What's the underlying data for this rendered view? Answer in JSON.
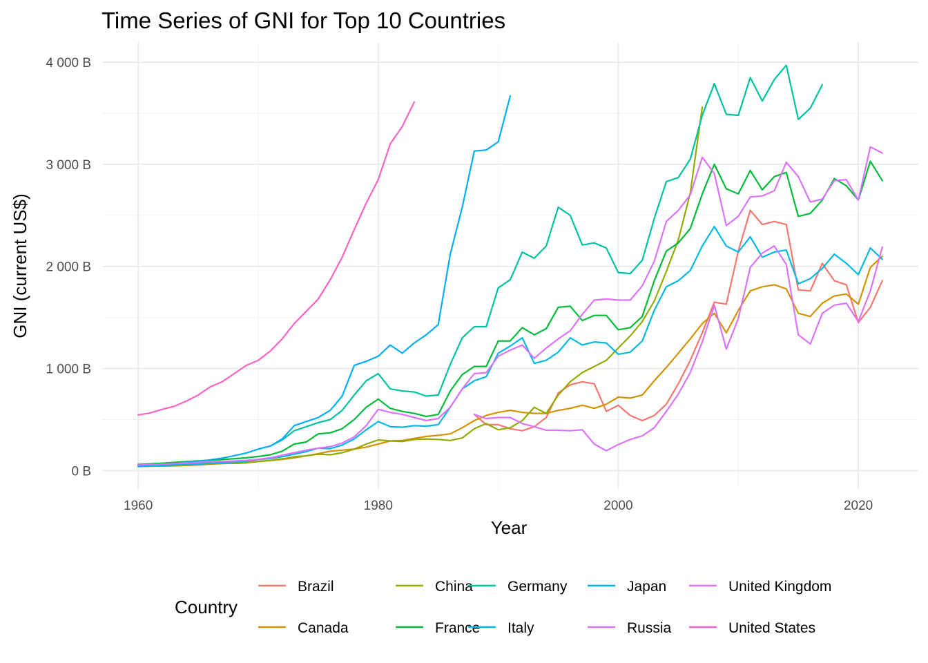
{
  "chart_data": {
    "type": "line",
    "title": "Time Series of GNI for Top 10 Countries",
    "xlabel": "Year",
    "ylabel": "GNI (current US$)",
    "xlim": [
      1957,
      2025
    ],
    "ylim": [
      -180,
      4190
    ],
    "x_ticks": [
      1960,
      1980,
      2000,
      2020
    ],
    "x_tick_labels": [
      "1960",
      "1980",
      "2000",
      "2020"
    ],
    "x_minor_ticks": [
      1970,
      1990,
      2010
    ],
    "y_ticks": [
      0,
      1000,
      2000,
      3000,
      4000
    ],
    "y_tick_labels": [
      "0 B",
      "1 000 B",
      "2 000 B",
      "3 000 B",
      "4 000 B"
    ],
    "y_minor_ticks": [
      500,
      1500,
      2500,
      3500
    ],
    "y_unit": "billions of current US$",
    "grid": true,
    "legend_title": "Country",
    "legend_position": "bottom",
    "series": [
      {
        "name": "Brazil",
        "color": "#F8766D",
        "start": 1988,
        "values": [
          550,
          450,
          450,
          410,
          390,
          430,
          520,
          760,
          840,
          870,
          850,
          580,
          640,
          540,
          490,
          540,
          650,
          850,
          1080,
          1350,
          1650,
          1630,
          2150,
          2550,
          2410,
          2440,
          2410,
          1770,
          1760,
          2030,
          1860,
          1820,
          1450,
          1600,
          1860
        ]
      },
      {
        "name": "Canada",
        "color": "#D39200",
        "start": 1960,
        "values": [
          40,
          42,
          44,
          46,
          50,
          55,
          62,
          68,
          73,
          80,
          88,
          98,
          110,
          125,
          145,
          165,
          190,
          200,
          210,
          230,
          260,
          290,
          295,
          315,
          335,
          345,
          360,
          420,
          490,
          540,
          570,
          590,
          570,
          560,
          560,
          590,
          610,
          640,
          610,
          650,
          720,
          710,
          740,
          880,
          1010,
          1150,
          1290,
          1440,
          1540,
          1350,
          1570,
          1760,
          1800,
          1820,
          1780,
          1540,
          1510,
          1640,
          1710,
          1730,
          1630,
          1990,
          2100
        ]
      },
      {
        "name": "China",
        "color": "#93AA00",
        "start": 1960,
        "values": [
          60,
          55,
          50,
          50,
          55,
          65,
          75,
          75,
          70,
          75,
          90,
          100,
          115,
          135,
          145,
          160,
          155,
          175,
          210,
          260,
          300,
          290,
          285,
          305,
          310,
          305,
          295,
          320,
          410,
          460,
          400,
          420,
          490,
          620,
          560,
          740,
          870,
          960,
          1020,
          1080,
          1200,
          1320,
          1460,
          1660,
          1950,
          2260,
          2720,
          3560
        ]
      },
      {
        "name": "France",
        "color": "#00BA38",
        "start": 1960,
        "values": [
          60,
          66,
          72,
          80,
          88,
          95,
          102,
          108,
          116,
          125,
          138,
          155,
          190,
          260,
          280,
          360,
          370,
          410,
          500,
          620,
          700,
          610,
          580,
          560,
          530,
          550,
          780,
          940,
          1020,
          1020,
          1270,
          1270,
          1400,
          1330,
          1390,
          1600,
          1610,
          1470,
          1520,
          1520,
          1380,
          1400,
          1510,
          1860,
          2150,
          2230,
          2370,
          2710,
          3000,
          2760,
          2710,
          2940,
          2750,
          2880,
          2920,
          2490,
          2520,
          2650,
          2860,
          2790,
          2650,
          3030,
          2840
        ]
      },
      {
        "name": "Germany",
        "color": "#00C19F",
        "start": 1970,
        "values": [
          210,
          240,
          300,
          390,
          430,
          470,
          500,
          590,
          740,
          880,
          950,
          800,
          780,
          770,
          730,
          740,
          1040,
          1300,
          1410,
          1410,
          1790,
          1870,
          2140,
          2080,
          2200,
          2580,
          2500,
          2210,
          2230,
          2180,
          1940,
          1930,
          2060,
          2470,
          2830,
          2870,
          3050,
          3480,
          3790,
          3490,
          3480,
          3850,
          3620,
          3830,
          3970,
          3440,
          3550,
          3780
        ]
      },
      {
        "name": "Italy",
        "color": "#00B9E3",
        "start": 1960,
        "values": [
          40,
          45,
          50,
          55,
          60,
          64,
          69,
          76,
          82,
          92,
          108,
          118,
          135,
          160,
          185,
          220,
          215,
          250,
          310,
          400,
          480,
          430,
          425,
          440,
          435,
          450,
          620,
          800,
          880,
          920,
          1150,
          1220,
          1300,
          1050,
          1080,
          1160,
          1300,
          1230,
          1260,
          1250,
          1140,
          1160,
          1270,
          1570,
          1800,
          1860,
          1960,
          2200,
          2390,
          2200,
          2140,
          2290,
          2090,
          2140,
          2160,
          1830,
          1880,
          1980,
          2120,
          2030,
          1920,
          2180,
          2070
        ]
      },
      {
        "name": "Japan",
        "color": "#00ADFA",
        "start": 1960,
        "values": [
          44,
          52,
          60,
          70,
          82,
          91,
          105,
          122,
          146,
          172,
          210,
          240,
          310,
          440,
          480,
          520,
          590,
          730,
          1030,
          1070,
          1120,
          1230,
          1150,
          1250,
          1330,
          1430,
          2120,
          2580,
          3130,
          3140,
          3220,
          3670
        ]
      },
      {
        "name": "Russia",
        "color": "#DB72FB",
        "start": 1988,
        "values": [
          550,
          510,
          520,
          520,
          460,
          430,
          395,
          395,
          390,
          400,
          260,
          195,
          255,
          305,
          340,
          420,
          580,
          750,
          960,
          1260,
          1620,
          1190,
          1490,
          1990,
          2130,
          2200,
          2020,
          1330,
          1240,
          1540,
          1620,
          1640,
          1460,
          1760,
          2190
        ]
      },
      {
        "name": "United Kingdom",
        "color": "#DB72FB",
        "start": 1960,
        "values": [
          55,
          59,
          63,
          68,
          74,
          80,
          86,
          90,
          94,
          100,
          110,
          125,
          150,
          175,
          200,
          220,
          235,
          270,
          330,
          440,
          600,
          570,
          550,
          520,
          490,
          510,
          620,
          800,
          950,
          960,
          1120,
          1180,
          1230,
          1100,
          1200,
          1290,
          1370,
          1530,
          1670,
          1680,
          1670,
          1670,
          1810,
          2050,
          2440,
          2550,
          2700,
          3070,
          2910,
          2400,
          2490,
          2680,
          2690,
          2740,
          3020,
          2880,
          2630,
          2660,
          2840,
          2850,
          2650,
          3170,
          3110
        ]
      },
      {
        "name": "United States",
        "color": "#FF61C3",
        "start": 1960,
        "values": [
          545,
          565,
          600,
          630,
          680,
          740,
          820,
          870,
          950,
          1030,
          1080,
          1170,
          1290,
          1440,
          1560,
          1680,
          1870,
          2090,
          2360,
          2620,
          2850,
          3200,
          3370,
          3610
        ]
      }
    ]
  }
}
